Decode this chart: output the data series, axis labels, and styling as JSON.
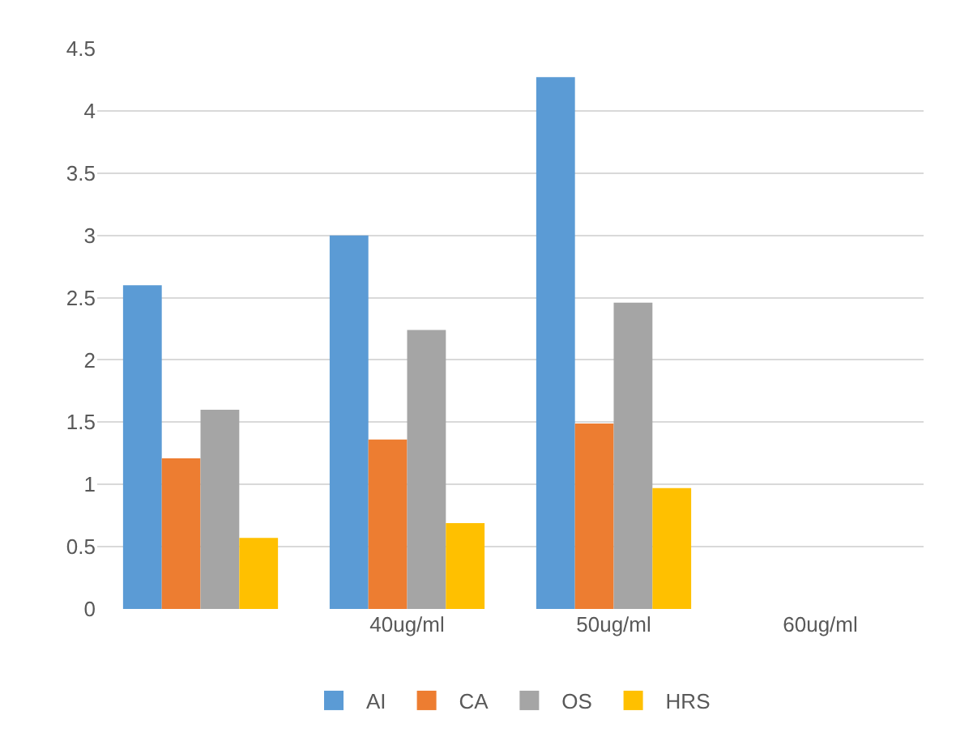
{
  "chart_data": {
    "type": "bar",
    "categories": [
      null,
      "40ug/ml",
      "50ug/ml",
      "60ug/ml"
    ],
    "series": [
      {
        "name": "AI",
        "color": "#5b9bd5",
        "values": [
          2.6,
          3.0,
          4.27,
          null
        ]
      },
      {
        "name": "CA",
        "color": "#ed7d31",
        "values": [
          1.21,
          1.36,
          1.49,
          null
        ]
      },
      {
        "name": "OS",
        "color": "#a5a5a5",
        "values": [
          1.6,
          2.24,
          2.46,
          null
        ]
      },
      {
        "name": "HRS",
        "color": "#ffc000",
        "values": [
          0.57,
          0.69,
          0.97,
          null
        ]
      }
    ],
    "ylim": [
      0,
      4.5
    ],
    "yticks": [
      0,
      0.5,
      1,
      1.5,
      2,
      2.5,
      3,
      3.5,
      4,
      4.5
    ],
    "grid": "y",
    "legend": "bottom"
  }
}
